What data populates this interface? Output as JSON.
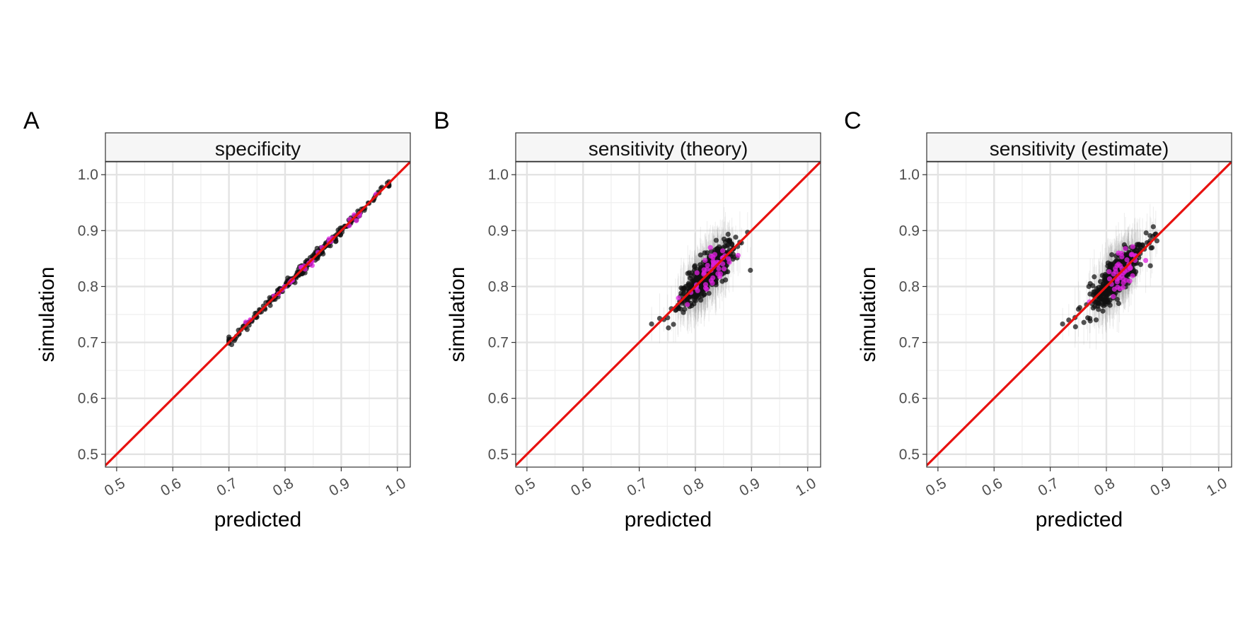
{
  "chart_data": [
    {
      "type": "scatter",
      "panel_tag": "A",
      "title": "specificity",
      "xlabel": "predicted",
      "ylabel": "simulation",
      "xlim": [
        0.48,
        1.023
      ],
      "ylim": [
        0.477,
        1.023
      ],
      "x_ticks": [
        "0.5",
        "0.6",
        "0.7",
        "0.8",
        "0.9",
        "1.0"
      ],
      "y_ticks": [
        "0.5",
        "0.6",
        "0.7",
        "0.8",
        "0.9",
        "1.0"
      ],
      "grid": true,
      "reference_line": {
        "type": "y=x",
        "color": "#e8110f"
      },
      "series": [
        {
          "color": "#111111",
          "n": 260,
          "x_range": [
            0.7,
            0.985
          ],
          "center": [
            0.84,
            0.84
          ],
          "spread_x": 0.065,
          "residual_sd": 0.004,
          "error_bar_half": 0.004,
          "outliers": [
            [
              0.702,
              0.705
            ],
            [
              0.982,
              0.985
            ],
            [
              0.736,
              0.731
            ]
          ]
        },
        {
          "color": "#e020e0",
          "n": 30,
          "x_range": [
            0.73,
            0.97
          ],
          "center": [
            0.84,
            0.84
          ],
          "spread_x": 0.05,
          "residual_sd": 0.005,
          "error_bar_half": 0.004
        }
      ]
    },
    {
      "type": "scatter",
      "panel_tag": "B",
      "title": "sensitivity (theory)",
      "xlabel": "predicted",
      "ylabel": "simulation",
      "xlim": [
        0.48,
        1.023
      ],
      "ylim": [
        0.477,
        1.023
      ],
      "x_ticks": [
        "0.5",
        "0.6",
        "0.7",
        "0.8",
        "0.9",
        "1.0"
      ],
      "y_ticks": [
        "0.5",
        "0.6",
        "0.7",
        "0.8",
        "0.9",
        "1.0"
      ],
      "grid": true,
      "reference_line": {
        "type": "y=x",
        "color": "#e8110f"
      },
      "series": [
        {
          "color": "#111111",
          "n": 520,
          "x_range": [
            0.72,
            0.91
          ],
          "center": [
            0.82,
            0.82
          ],
          "spread_x": 0.022,
          "residual_sd": 0.016,
          "error_bar_half": 0.045,
          "outliers": [
            [
              0.722,
              0.733
            ],
            [
              0.752,
              0.726
            ],
            [
              0.898,
              0.829
            ],
            [
              0.893,
              0.897
            ],
            [
              0.882,
              0.878
            ],
            [
              0.744,
              0.741
            ]
          ]
        },
        {
          "color": "#e020e0",
          "n": 45,
          "x_range": [
            0.77,
            0.88
          ],
          "center": [
            0.83,
            0.83
          ],
          "spread_x": 0.02,
          "residual_sd": 0.016,
          "error_bar_half": 0.045
        }
      ]
    },
    {
      "type": "scatter",
      "panel_tag": "C",
      "title": "sensitivity (estimate)",
      "xlabel": "predicted",
      "ylabel": "simulation",
      "xlim": [
        0.48,
        1.023
      ],
      "ylim": [
        0.477,
        1.023
      ],
      "x_ticks": [
        "0.5",
        "0.6",
        "0.7",
        "0.8",
        "0.9",
        "1.0"
      ],
      "y_ticks": [
        "0.5",
        "0.6",
        "0.7",
        "0.8",
        "0.9",
        "1.0"
      ],
      "grid": true,
      "reference_line": {
        "type": "y=x",
        "color": "#e8110f"
      },
      "series": [
        {
          "color": "#111111",
          "n": 520,
          "x_range": [
            0.72,
            0.89
          ],
          "center": [
            0.82,
            0.82
          ],
          "spread_x": 0.022,
          "residual_sd": 0.016,
          "error_bar_half": 0.045,
          "outliers": [
            [
              0.722,
              0.733
            ],
            [
              0.745,
              0.728
            ],
            [
              0.888,
              0.894
            ],
            [
              0.878,
              0.882
            ],
            [
              0.733,
              0.74
            ]
          ]
        },
        {
          "color": "#e020e0",
          "n": 45,
          "x_range": [
            0.77,
            0.87
          ],
          "center": [
            0.83,
            0.83
          ],
          "spread_x": 0.02,
          "residual_sd": 0.016,
          "error_bar_half": 0.045
        }
      ]
    }
  ]
}
